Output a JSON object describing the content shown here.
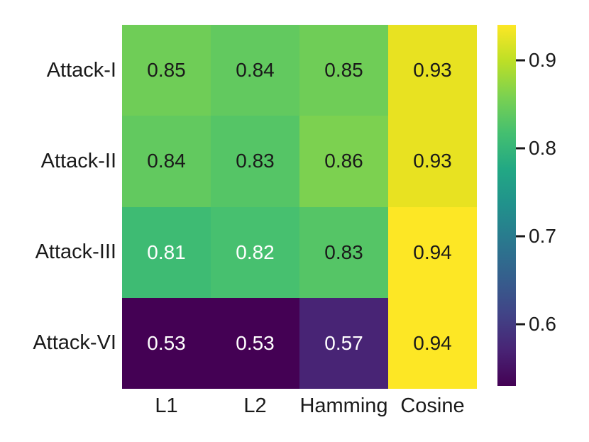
{
  "chart_data": {
    "type": "heatmap",
    "title": "",
    "xlabel": "",
    "ylabel": "",
    "rows": [
      "Attack-I",
      "Attack-II",
      "Attack-III",
      "Attack-VI"
    ],
    "columns": [
      "L1",
      "L2",
      "Hamming",
      "Cosine"
    ],
    "values": [
      [
        0.85,
        0.84,
        0.85,
        0.93
      ],
      [
        0.84,
        0.83,
        0.86,
        0.93
      ],
      [
        0.81,
        0.82,
        0.83,
        0.94
      ],
      [
        0.53,
        0.53,
        0.57,
        0.94
      ]
    ],
    "cell_labels": [
      [
        "0.85",
        "0.84",
        "0.85",
        "0.93"
      ],
      [
        "0.84",
        "0.83",
        "0.86",
        "0.93"
      ],
      [
        "0.81",
        "0.82",
        "0.83",
        "0.94"
      ],
      [
        "0.53",
        "0.53",
        "0.57",
        "0.94"
      ]
    ],
    "cell_colors": [
      [
        "#6fcd57",
        "#62c95f",
        "#6fcd57",
        "#e8e221"
      ],
      [
        "#62c95f",
        "#55c566",
        "#7cd150",
        "#e8e221"
      ],
      [
        "#3ebb73",
        "#47c06f",
        "#55c566",
        "#fde725"
      ],
      [
        "#440154",
        "#440154",
        "#482475",
        "#fde725"
      ]
    ],
    "cell_text_colors": [
      [
        "#1a1a1a",
        "#1a1a1a",
        "#1a1a1a",
        "#1a1a1a"
      ],
      [
        "#1a1a1a",
        "#1a1a1a",
        "#1a1a1a",
        "#1a1a1a"
      ],
      [
        "#ffffff",
        "#ffffff",
        "#1a1a1a",
        "#1a1a1a"
      ],
      [
        "#ffffff",
        "#ffffff",
        "#ffffff",
        "#1a1a1a"
      ]
    ],
    "colormap": "viridis",
    "vmin": 0.53,
    "vmax": 0.94,
    "legend_position": "right-colorbar",
    "grid": false,
    "colorbar": {
      "ticks": [
        {
          "label": "0.9",
          "value": 0.9
        },
        {
          "label": "0.8",
          "value": 0.8
        },
        {
          "label": "0.7",
          "value": 0.7
        },
        {
          "label": "0.6",
          "value": 0.6
        }
      ],
      "gradient_stops_bottom_to_top": [
        "#440154",
        "#482475",
        "#414487",
        "#355f8d",
        "#2a788e",
        "#21918c",
        "#22a884",
        "#44bf70",
        "#7ad151",
        "#bddf26",
        "#fde725"
      ]
    }
  }
}
